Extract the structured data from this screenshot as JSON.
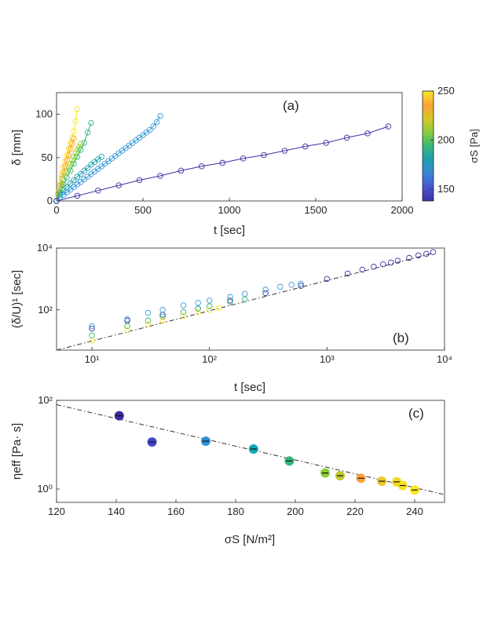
{
  "chart_data": [
    {
      "id": "a",
      "type": "scatter",
      "panel_label": "(a)",
      "xlabel": "t [sec]",
      "ylabel": "δ [mm]",
      "xlim": [
        0,
        2000
      ],
      "ylim": [
        0,
        125
      ],
      "xticks": [
        0,
        500,
        1000,
        1500,
        2000
      ],
      "yticks": [
        0,
        50,
        100
      ],
      "grid": false,
      "series": [
        {
          "stress": 250,
          "color": "#f9e721",
          "x": [
            0,
            10,
            20,
            30,
            40,
            50,
            60,
            70,
            80,
            90,
            100,
            110,
            120
          ],
          "y": [
            0,
            10,
            20,
            30,
            39,
            46,
            53,
            60,
            67,
            73,
            80,
            92,
            106
          ]
        },
        {
          "stress": 222,
          "color": "#fca33a",
          "x": [
            0,
            10,
            20,
            30,
            40,
            50,
            60,
            70,
            80,
            90,
            100
          ],
          "y": [
            0,
            9,
            18,
            26,
            33,
            40,
            47,
            53,
            60,
            66,
            72
          ]
        },
        {
          "stress": 210,
          "color": "#a8d42e",
          "x": [
            0,
            10,
            20,
            30,
            40,
            50,
            60,
            70,
            80,
            90,
            100,
            110,
            120,
            130,
            140
          ],
          "y": [
            0,
            7,
            13,
            19,
            24,
            29,
            34,
            38,
            43,
            47,
            51,
            55,
            59,
            62,
            66
          ]
        },
        {
          "stress": 198,
          "color": "#35b779",
          "x": [
            0,
            20,
            40,
            60,
            80,
            100,
            120,
            140,
            160,
            180,
            200
          ],
          "y": [
            0,
            10,
            19,
            27,
            35,
            43,
            51,
            59,
            67,
            79,
            90
          ]
        },
        {
          "stress": 186,
          "color": "#1e9fb0",
          "x": [
            0,
            20,
            40,
            60,
            80,
            100,
            120,
            140,
            160,
            180,
            200,
            220,
            240,
            260
          ],
          "y": [
            0,
            7,
            12,
            16,
            20,
            24,
            28,
            31,
            35,
            38,
            42,
            45,
            48,
            51
          ]
        },
        {
          "stress": 170,
          "color": "#3a9ad9",
          "x": [
            0,
            20,
            40,
            60,
            80,
            100,
            120,
            140,
            160,
            180,
            200,
            220,
            240,
            260,
            280,
            300,
            320,
            340,
            360,
            380,
            400,
            420,
            440,
            460,
            480,
            500,
            520,
            540,
            560,
            580,
            600
          ],
          "y": [
            0,
            4,
            7,
            10,
            13,
            16,
            19,
            22,
            25,
            28,
            31,
            34,
            37,
            40,
            43,
            46,
            49,
            52,
            55,
            58,
            61,
            64,
            67,
            70,
            73,
            76,
            79,
            82,
            86,
            91,
            98
          ]
        },
        {
          "stress": 141,
          "color": "#3a33a3",
          "x": [
            0,
            120,
            240,
            360,
            480,
            600,
            720,
            840,
            960,
            1080,
            1200,
            1320,
            1440,
            1560,
            1680,
            1800,
            1920
          ],
          "y": [
            0,
            6,
            12,
            18,
            24,
            29,
            35,
            40,
            44,
            49,
            53,
            58,
            63,
            67,
            73,
            78,
            86
          ]
        }
      ]
    },
    {
      "id": "b",
      "type": "scatter",
      "panel_label": "(b)",
      "xlabel": "t [sec]",
      "ylabel": "(δ/U)¹ [sec]",
      "xscale": "log",
      "yscale": "log",
      "xlim": [
        5,
        10000
      ],
      "ylim": [
        5,
        10000
      ],
      "xticks": [
        10,
        100,
        1000,
        10000
      ],
      "yticks": [
        100,
        10000
      ],
      "xtick_labels": [
        "10¹",
        "10²",
        "10³",
        "10⁴"
      ],
      "ytick_labels": [
        "10²",
        "10⁴"
      ],
      "fit_line": {
        "style": "dash-dot",
        "x": [
          5,
          8000
        ],
        "y": [
          4,
          6800
        ]
      },
      "grid": false,
      "series": [
        {
          "stress": 141,
          "color": "#3a33a3",
          "x": [
            10,
            20,
            40,
            80,
            150,
            300,
            600,
            1000,
            1500,
            2000,
            2500,
            3000,
            3500,
            4000,
            5000,
            6000,
            7000,
            8000
          ],
          "y": [
            25,
            45,
            70,
            110,
            200,
            350,
            600,
            1000,
            1500,
            2000,
            2500,
            3000,
            3400,
            3900,
            4800,
            5800,
            6500,
            7400
          ]
        },
        {
          "stress": 170,
          "color": "#3a9ad9",
          "x": [
            10,
            20,
            30,
            40,
            60,
            80,
            100,
            150,
            200,
            300,
            400,
            500,
            600
          ],
          "y": [
            30,
            50,
            80,
            100,
            140,
            170,
            200,
            260,
            330,
            450,
            560,
            650,
            700
          ]
        },
        {
          "stress": 198,
          "color": "#35b779",
          "x": [
            10,
            20,
            30,
            40,
            60,
            80,
            100,
            150,
            200
          ],
          "y": [
            15,
            30,
            45,
            60,
            85,
            110,
            130,
            180,
            220
          ]
        },
        {
          "stress": 250,
          "color": "#f9e721",
          "x": [
            10,
            20,
            30,
            40,
            60,
            80,
            100,
            120
          ],
          "y": [
            10,
            22,
            35,
            45,
            65,
            85,
            100,
            115
          ]
        }
      ]
    },
    {
      "id": "c",
      "type": "scatter",
      "panel_label": "(c)",
      "xlabel": "σS [N/m²]",
      "ylabel": "ηeff [Pa· s]",
      "xlim": [
        120,
        250
      ],
      "yscale": "log",
      "ylim": [
        0.5,
        100
      ],
      "xticks": [
        120,
        140,
        160,
        180,
        200,
        220,
        240
      ],
      "yticks": [
        1,
        100
      ],
      "ytick_labels": [
        "10⁰",
        "10²"
      ],
      "fit_line": {
        "style": "dash-dot",
        "x": [
          120,
          250
        ],
        "y": [
          80,
          0.75
        ]
      },
      "grid": false,
      "points": [
        {
          "x": 141,
          "y": 45,
          "color": "#3d2a9f"
        },
        {
          "x": 152,
          "y": 11.5,
          "color": "#4346c8"
        },
        {
          "x": 170,
          "y": 12,
          "color": "#2f8fd9"
        },
        {
          "x": 186,
          "y": 8,
          "color": "#14a6b8"
        },
        {
          "x": 198,
          "y": 4.3,
          "color": "#35b779"
        },
        {
          "x": 210,
          "y": 2.3,
          "color": "#8ccc3a"
        },
        {
          "x": 215,
          "y": 2.0,
          "color": "#c0c92c"
        },
        {
          "x": 222,
          "y": 1.75,
          "color": "#f8a23c"
        },
        {
          "x": 229,
          "y": 1.5,
          "color": "#e9c92c"
        },
        {
          "x": 234,
          "y": 1.45,
          "color": "#f2d822"
        },
        {
          "x": 236,
          "y": 1.2,
          "color": "#f7e01e"
        },
        {
          "x": 240,
          "y": 0.95,
          "color": "#f9e721"
        }
      ]
    }
  ],
  "colorbar": {
    "label": "σS [Pa]",
    "range": [
      138,
      250
    ],
    "ticks": [
      150,
      200,
      250
    ],
    "colormap": [
      "#f9e721",
      "#fca33a",
      "#d6c62a",
      "#8ccc3a",
      "#35b779",
      "#1e9fb0",
      "#3a85d6",
      "#4656d0",
      "#3a33a3"
    ]
  }
}
